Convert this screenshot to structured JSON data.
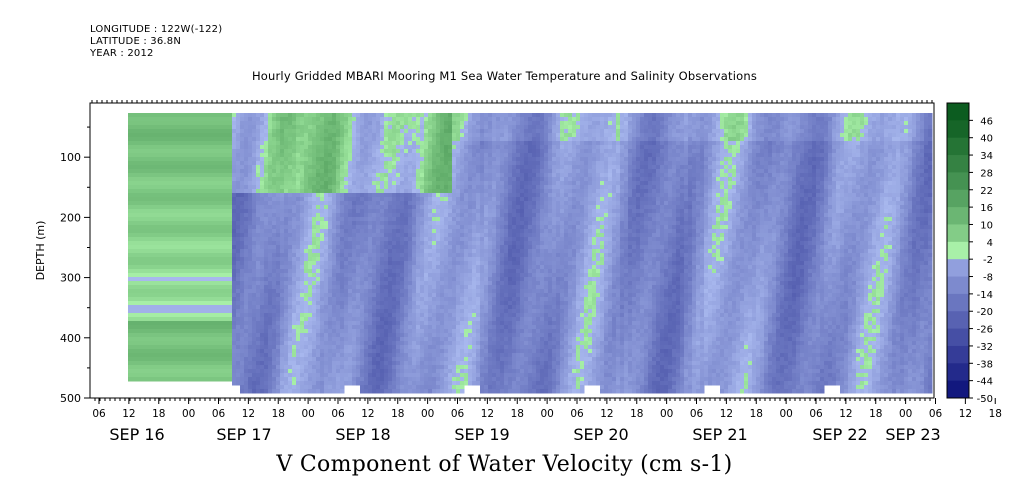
{
  "header": {
    "longitude": "LONGITUDE : 122W(-122)",
    "latitude": "LATITUDE : 36.8N",
    "year": "YEAR : 2012"
  },
  "chart_data": {
    "type": "heatmap",
    "title": "Hourly Gridded MBARI Mooring M1 Sea Water Temperature and Salinity Observations",
    "xlabel": "V Component of Water Velocity (cm s-1)",
    "ylabel": "DEPTH (m)",
    "ylim": [
      500,
      10
    ],
    "y_ticks": [
      100,
      200,
      300,
      400,
      500
    ],
    "x_hour_ticks": [
      "06",
      "12",
      "18",
      "00",
      "06",
      "12",
      "18",
      "00",
      "06",
      "12",
      "18",
      "00",
      "06",
      "12",
      "18",
      "00",
      "06",
      "12",
      "18",
      "00",
      "06",
      "12",
      "18",
      "00",
      "06",
      "12",
      "18",
      "00",
      "06",
      "12",
      "18",
      "00",
      "06"
    ],
    "x_day_labels": [
      "SEP 16",
      "SEP 17",
      "SEP 18",
      "SEP 19",
      "SEP 20",
      "SEP 21",
      "SEP 22",
      "SEP 23"
    ],
    "colorbar": {
      "levels": [
        48,
        46,
        40,
        34,
        28,
        22,
        16,
        10,
        4,
        -2,
        -8,
        -14,
        -20,
        -26,
        -32,
        -38,
        -44,
        -50
      ],
      "labels": [
        "46",
        "40",
        "34",
        "28",
        "22",
        "16",
        "10",
        "4",
        "-2",
        "-8",
        "-14",
        "-20",
        "-26",
        "-32",
        "-38",
        "-44",
        "-50"
      ],
      "low_color": "#0a0f78",
      "mid_low_color": "#a8b8ee",
      "mid_high_color": "#a8f0a8",
      "high_color": "#0a5a1e"
    },
    "field_summary": {
      "description": "V velocity vs depth and time, mostly -20 to 0 cm/s with positive (green) patches",
      "data_start_hour": 12,
      "data_start_day": "SEP 16",
      "data_end_day": "SEP 23",
      "depth_range": [
        20,
        490
      ]
    }
  }
}
